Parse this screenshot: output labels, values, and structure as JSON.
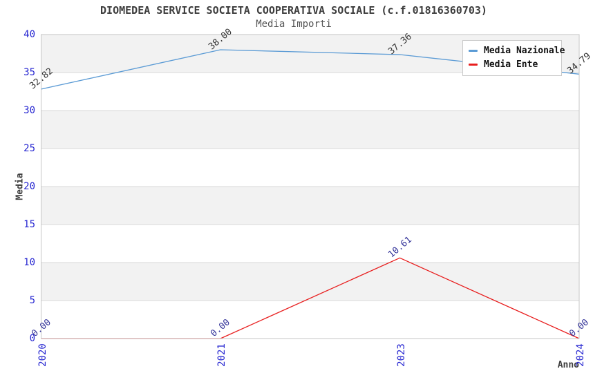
{
  "chart_data": {
    "type": "line",
    "title": "DIOMEDEA SERVICE SOCIETA COOPERATIVA SOCIALE (c.f.01816360703)",
    "subtitle": "Media Importi",
    "xlabel": "Anno",
    "ylabel": "Media",
    "categories": [
      "2020",
      "2021",
      "2023",
      "2024"
    ],
    "series": [
      {
        "name": "Media Nazionale",
        "color": "#5b9bd5",
        "values": [
          32.82,
          38.0,
          37.36,
          34.79
        ],
        "point_labels": [
          "32.82",
          "38.00",
          "37.36",
          "34.79"
        ],
        "label_color": "#333333"
      },
      {
        "name": "Media Ente",
        "color": "#e81e1e",
        "values": [
          0.0,
          0.0,
          10.61,
          0.0
        ],
        "point_labels": [
          "0.00",
          "0.00",
          "10.61",
          "0.00"
        ],
        "label_color": "#333399"
      }
    ],
    "ylim": [
      0,
      40
    ],
    "ytick_step": 5,
    "yticks": [
      0,
      5,
      10,
      15,
      20,
      25,
      30,
      35,
      40
    ],
    "grid": true,
    "legend_position": "top-right",
    "styles": {
      "tick_label_color": "#2626d1",
      "band_color_shaded": "#f2f2f2",
      "band_color_plain": "#ffffff",
      "gridline_color": "#d8d8d8",
      "plot_border_color": "#c6c6c6",
      "title_color": "#3d3d3d",
      "subtitle_color": "#555555"
    }
  }
}
